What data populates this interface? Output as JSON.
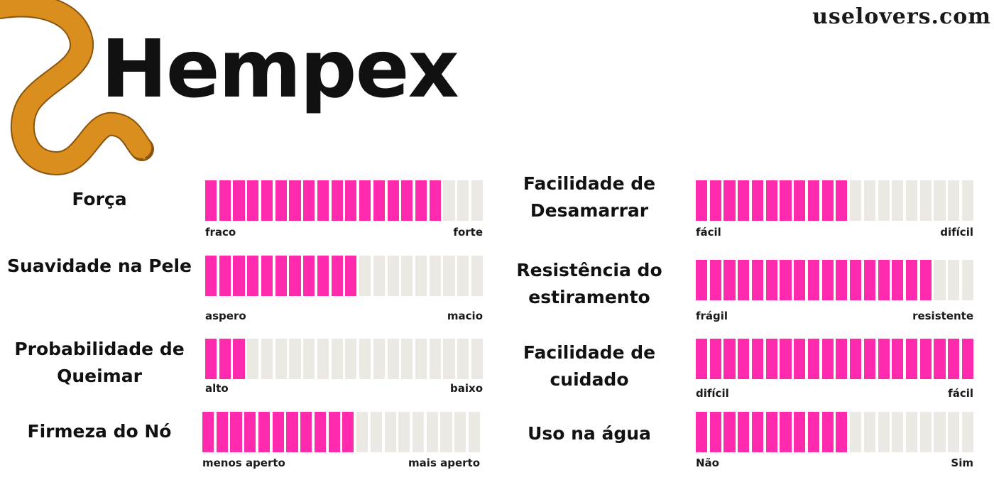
{
  "site": "uselovers.com",
  "title": "Hempex",
  "colors": {
    "filled": "#ff2aad",
    "empty": "#ece9e4",
    "rope": "#d98e1e"
  },
  "segments_total": 20,
  "ratings": [
    {
      "label": "Força",
      "min": "fraco",
      "max": "forte",
      "value": 17
    },
    {
      "label": "Suavidade na Pele",
      "min": "aspero",
      "max": "macio",
      "value": 11
    },
    {
      "label": "Probabilidade de Queimar",
      "min": "alto",
      "max": "baixo",
      "value": 3
    },
    {
      "label": "Firmeza do Nó",
      "min": "menos aperto",
      "max": "mais aperto",
      "value": 11
    },
    {
      "label": "Facilidade de Desamarrar",
      "min": "fácil",
      "max": "difícil",
      "value": 11
    },
    {
      "label": "Resistência do estiramento",
      "min": "frágil",
      "max": "resistente",
      "value": 17
    },
    {
      "label": "Facilidade de cuidado",
      "min": "difícil",
      "max": "fácil",
      "value": 20
    },
    {
      "label": "Uso na água",
      "min": "Não",
      "max": "Sim",
      "value": 11
    }
  ]
}
